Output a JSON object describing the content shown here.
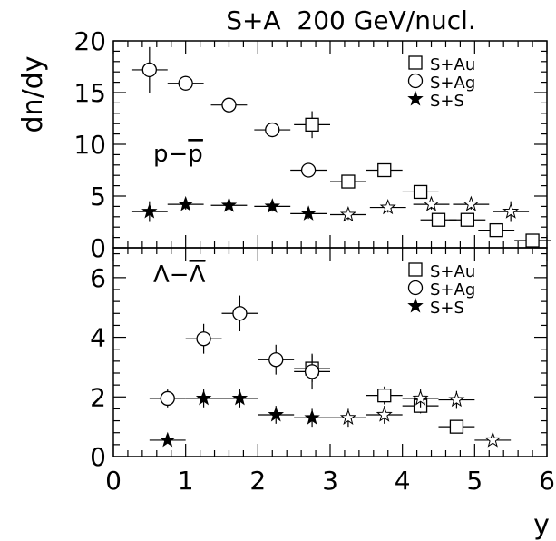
{
  "figure": {
    "title": "S+A  200 GeV/nucl.",
    "ylabel": "dn/dy",
    "xlabel": "y"
  },
  "chart_data": [
    {
      "type": "scatter",
      "panel_label": "p−p̄",
      "panel_label_parts": {
        "base": "p−",
        "overlined": "p"
      },
      "xlim": [
        0,
        6
      ],
      "ylim": [
        0,
        20
      ],
      "yticks": [
        0,
        5,
        10,
        15,
        20
      ],
      "legend_position": "top-right",
      "series": [
        {
          "name": "S+Au",
          "marker": "square-open",
          "points": [
            {
              "x": 2.75,
              "y": 11.9,
              "xerr": 0.25,
              "yerr": 1.3
            },
            {
              "x": 3.25,
              "y": 6.4,
              "xerr": 0.25,
              "yerr": 0.6
            },
            {
              "x": 3.75,
              "y": 7.5,
              "xerr": 0.25,
              "yerr": 0.5
            },
            {
              "x": 4.25,
              "y": 5.4,
              "xerr": 0.25,
              "yerr": 0.5
            },
            {
              "x": 4.5,
              "y": 2.7,
              "xerr": 0.25,
              "yerr": 0.4
            },
            {
              "x": 4.9,
              "y": 2.7,
              "xerr": 0.25,
              "yerr": 0.5
            },
            {
              "x": 5.3,
              "y": 1.7,
              "xerr": 0.25,
              "yerr": 0.6
            },
            {
              "x": 5.8,
              "y": 0.7,
              "xerr": 0.25,
              "yerr": 0.4
            }
          ]
        },
        {
          "name": "S+Ag",
          "marker": "circle-open",
          "points": [
            {
              "x": 0.5,
              "y": 17.2,
              "xerr": 0.25,
              "yerr": 2.2
            },
            {
              "x": 1.0,
              "y": 15.9,
              "xerr": 0.25,
              "yerr": 0.7
            },
            {
              "x": 1.6,
              "y": 13.8,
              "xerr": 0.25,
              "yerr": 0.6
            },
            {
              "x": 2.2,
              "y": 11.4,
              "xerr": 0.25,
              "yerr": 0.6
            },
            {
              "x": 2.7,
              "y": 7.5,
              "xerr": 0.25,
              "yerr": 0.6
            }
          ]
        },
        {
          "name": "S+S",
          "marker": "star-filled",
          "points": [
            {
              "x": 0.5,
              "y": 3.5,
              "xerr": 0.25,
              "yerr": 1.0
            },
            {
              "x": 1.0,
              "y": 4.2,
              "xerr": 0.25,
              "yerr": 0.5
            },
            {
              "x": 1.6,
              "y": 4.1,
              "xerr": 0.25,
              "yerr": 0.5
            },
            {
              "x": 2.2,
              "y": 4.0,
              "xerr": 0.25,
              "yerr": 0.5
            },
            {
              "x": 2.7,
              "y": 3.3,
              "xerr": 0.25,
              "yerr": 0.5
            }
          ]
        },
        {
          "name": "S+S (reflected)",
          "marker": "star-open",
          "in_legend": false,
          "points": [
            {
              "x": 3.25,
              "y": 3.2,
              "xerr": 0.25,
              "yerr": 0.5
            },
            {
              "x": 3.8,
              "y": 3.9,
              "xerr": 0.25,
              "yerr": 0.5
            },
            {
              "x": 4.4,
              "y": 4.2,
              "xerr": 0.25,
              "yerr": 0.5
            },
            {
              "x": 4.95,
              "y": 4.2,
              "xerr": 0.25,
              "yerr": 0.5
            },
            {
              "x": 5.5,
              "y": 3.5,
              "xerr": 0.25,
              "yerr": 1.0
            }
          ]
        }
      ]
    },
    {
      "type": "scatter",
      "panel_label": "Λ−Λ̄",
      "panel_label_parts": {
        "base": "Λ−",
        "overlined": "Λ"
      },
      "xlim": [
        0,
        6
      ],
      "ylim": [
        0,
        7
      ],
      "yticks": [
        0,
        2,
        4,
        6
      ],
      "xticks": [
        0,
        1,
        2,
        3,
        4,
        5,
        6
      ],
      "legend_position": "top-right",
      "series": [
        {
          "name": "S+Au",
          "marker": "square-open",
          "points": [
            {
              "x": 2.75,
              "y": 2.95,
              "xerr": 0.25,
              "yerr": 0.45
            },
            {
              "x": 3.75,
              "y": 2.05,
              "xerr": 0.25,
              "yerr": 0.3
            },
            {
              "x": 4.25,
              "y": 1.7,
              "xerr": 0.25,
              "yerr": 0.25
            },
            {
              "x": 4.75,
              "y": 1.0,
              "xerr": 0.25,
              "yerr": 0.2
            }
          ]
        },
        {
          "name": "S+Ag",
          "marker": "circle-open",
          "points": [
            {
              "x": 0.75,
              "y": 1.95,
              "xerr": 0.25,
              "yerr": 0.3
            },
            {
              "x": 1.25,
              "y": 3.95,
              "xerr": 0.25,
              "yerr": 0.5
            },
            {
              "x": 1.75,
              "y": 4.8,
              "xerr": 0.25,
              "yerr": 0.6
            },
            {
              "x": 2.25,
              "y": 3.25,
              "xerr": 0.25,
              "yerr": 0.5
            },
            {
              "x": 2.75,
              "y": 2.85,
              "xerr": 0.25,
              "yerr": 0.6
            }
          ]
        },
        {
          "name": "S+S",
          "marker": "star-filled",
          "points": [
            {
              "x": 0.75,
              "y": 0.55,
              "xerr": 0.25,
              "yerr": 0.1
            },
            {
              "x": 1.25,
              "y": 1.95,
              "xerr": 0.25,
              "yerr": 0.3
            },
            {
              "x": 1.75,
              "y": 1.95,
              "xerr": 0.25,
              "yerr": 0.3
            },
            {
              "x": 2.25,
              "y": 1.4,
              "xerr": 0.25,
              "yerr": 0.3
            },
            {
              "x": 2.75,
              "y": 1.3,
              "xerr": 0.25,
              "yerr": 0.3
            }
          ]
        },
        {
          "name": "S+S (reflected)",
          "marker": "star-open",
          "in_legend": false,
          "points": [
            {
              "x": 3.25,
              "y": 1.3,
              "xerr": 0.25,
              "yerr": 0.3
            },
            {
              "x": 3.75,
              "y": 1.4,
              "xerr": 0.25,
              "yerr": 0.3
            },
            {
              "x": 4.25,
              "y": 1.95,
              "xerr": 0.25,
              "yerr": 0.3
            },
            {
              "x": 4.75,
              "y": 1.9,
              "xerr": 0.25,
              "yerr": 0.3
            },
            {
              "x": 5.25,
              "y": 0.55,
              "xerr": 0.25,
              "yerr": 0.1
            }
          ]
        }
      ]
    }
  ],
  "legend": {
    "items": [
      {
        "label": "S+Au",
        "marker": "square-open"
      },
      {
        "label": "S+Ag",
        "marker": "circle-open"
      },
      {
        "label": "S+S",
        "marker": "star-filled"
      }
    ]
  }
}
